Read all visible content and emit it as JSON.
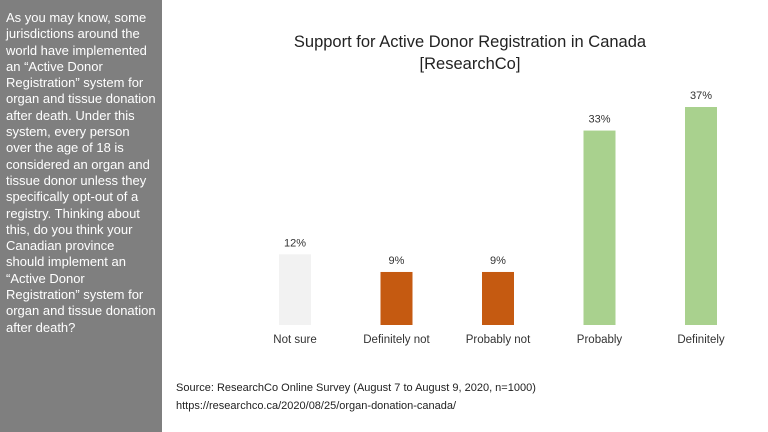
{
  "sidebar": {
    "question": "As you may know, some jurisdictions around the world have implemented an “Active Donor Registration” system for organ and tissue donation after death. Under this system, every person over the age of 18 is considered an organ and tissue donor unless they specifically opt-out of a registry. Thinking about this, do you think your Canadian province should implement an “Active Donor Registration” system for organ and tissue donation after death?"
  },
  "chart_data": {
    "type": "bar",
    "title": "Support for Active Donor Registration in Canada",
    "subtitle": "[ResearchCo]",
    "categories": [
      "Not sure",
      "Definitely not",
      "Probably not",
      "Probably",
      "Definitely"
    ],
    "values": [
      12,
      9,
      9,
      33,
      37
    ],
    "value_labels": [
      "12%",
      "9%",
      "9%",
      "33%",
      "37%"
    ],
    "colors": [
      "#f2f2f2",
      "#c55a11",
      "#c55a11",
      "#a9d18e",
      "#a9d18e"
    ],
    "ylim": [
      0,
      37
    ],
    "grid": false,
    "legend": "none"
  },
  "source": {
    "line1": "Source:  ResearchCo Online Survey (August 7 to August 9, 2020, n=1000)",
    "line2": "https://researchco.ca/2020/08/25/organ-donation-canada/"
  }
}
